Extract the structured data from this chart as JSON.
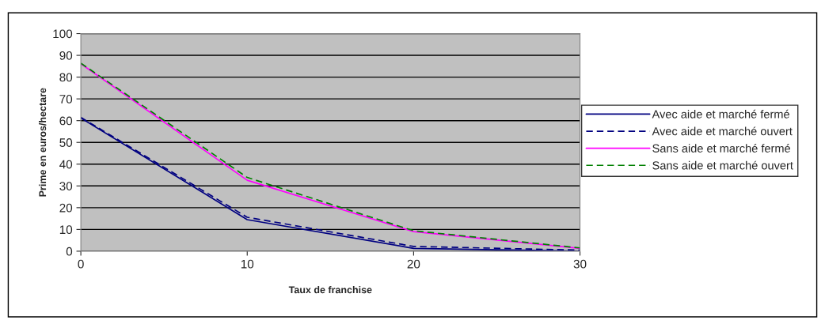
{
  "chart_data": {
    "type": "line",
    "xlabel": "Taux de franchise",
    "ylabel": "Prime en euros/hectare",
    "x": [
      0,
      10,
      20,
      30
    ],
    "series": [
      {
        "name": "Avec aide et marché fermé",
        "color": "#000080",
        "line_style": "solid",
        "values": [
          61.2,
          14.5,
          1.3,
          0
        ]
      },
      {
        "name": "Avec aide et marché ouvert",
        "color": "#000080",
        "line_style": "dashed",
        "values": [
          61.5,
          15.6,
          2.2,
          0.5
        ]
      },
      {
        "name": "Sans aide et marché fermé",
        "color": "#ff00ff",
        "line_style": "solid",
        "values": [
          86.1,
          32.6,
          9.0,
          1.3
        ]
      },
      {
        "name": "Sans aide et marché ouvert",
        "color": "#008000",
        "line_style": "dashed",
        "values": [
          86.4,
          33.9,
          9.4,
          1.5
        ]
      }
    ],
    "xlim": [
      0,
      30
    ],
    "xticks": [
      0,
      10,
      20,
      30
    ],
    "ylim": [
      0,
      100
    ],
    "yticks": [
      0,
      10,
      20,
      30,
      40,
      50,
      60,
      70,
      80,
      90,
      100
    ],
    "grid": "y",
    "legend": "right",
    "marker": "none"
  }
}
